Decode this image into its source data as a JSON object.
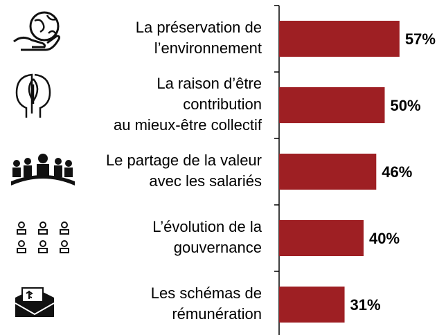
{
  "chart_data": {
    "type": "bar",
    "orientation": "horizontal",
    "categories": [
      [
        "La préservation de",
        "l’environnement"
      ],
      [
        "La raison d’être",
        "contribution",
        "au mieux-être collectif"
      ],
      [
        "Le partage de la valeur",
        "avec les salariés"
      ],
      [
        "L’évolution de la",
        "gouvernance"
      ],
      [
        "Les schémas de",
        "rémunération"
      ]
    ],
    "values": [
      57,
      50,
      46,
      40,
      31
    ],
    "value_labels": [
      "57%",
      "50%",
      "46%",
      "40%",
      "31%"
    ],
    "color": "#9e1f23",
    "xlim": [
      0,
      100
    ]
  }
}
